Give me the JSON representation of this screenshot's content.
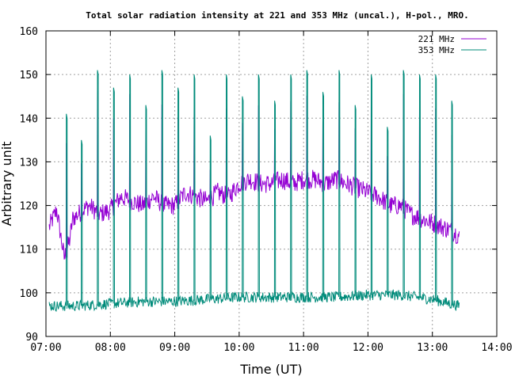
{
  "chart_data": {
    "type": "line",
    "title": "Total solar radiation intensity at 221 and 353 MHz (uncal.), H-pol., MRO.",
    "xlabel": "Time (UT)",
    "ylabel": "Arbitrary unit",
    "xlim": [
      "07:00",
      "14:00"
    ],
    "ylim": [
      90,
      160
    ],
    "x_ticks": [
      "07:00",
      "08:00",
      "09:00",
      "10:00",
      "11:00",
      "12:00",
      "13:00",
      "14:00"
    ],
    "y_ticks": [
      90,
      100,
      110,
      120,
      130,
      140,
      150,
      160
    ],
    "grid": true,
    "legend_position": "top-right",
    "series": [
      {
        "name": "221 MHz",
        "color": "#9400d3",
        "x": [
          "07:03",
          "07:10",
          "07:17",
          "07:22",
          "07:25",
          "07:30",
          "07:40",
          "07:50",
          "08:00",
          "08:10",
          "08:20",
          "08:30",
          "08:40",
          "08:50",
          "09:00",
          "09:10",
          "09:20",
          "09:30",
          "09:40",
          "09:50",
          "10:00",
          "10:10",
          "10:20",
          "10:30",
          "10:40",
          "10:50",
          "11:00",
          "11:10",
          "11:20",
          "11:30",
          "11:40",
          "11:50",
          "12:00",
          "12:10",
          "12:20",
          "12:30",
          "12:40",
          "12:50",
          "13:00",
          "13:10",
          "13:20",
          "13:25"
        ],
        "values": [
          115,
          119,
          108,
          112,
          117,
          118,
          120,
          118,
          119,
          122,
          121,
          120,
          122,
          120,
          120,
          123,
          122,
          121,
          123,
          122,
          125,
          126,
          125,
          125,
          126,
          125,
          126,
          126,
          125,
          126,
          125,
          124,
          123,
          122,
          120,
          120,
          118,
          117,
          116,
          115,
          114,
          113
        ]
      },
      {
        "name": "353 MHz",
        "color": "#008b7a",
        "baseline": {
          "x": [
            "07:03",
            "07:30",
            "08:00",
            "08:30",
            "09:00",
            "09:30",
            "10:00",
            "10:30",
            "11:00",
            "11:30",
            "12:00",
            "12:30",
            "13:00",
            "13:25"
          ],
          "values": [
            97,
            97,
            97.5,
            98,
            98,
            98.5,
            99,
            99,
            99,
            99,
            99.5,
            99.5,
            98.5,
            97
          ]
        },
        "spikes": {
          "x": [
            "07:19",
            "07:33",
            "07:48",
            "08:03",
            "08:18",
            "08:33",
            "08:48",
            "09:03",
            "09:18",
            "09:33",
            "09:48",
            "10:03",
            "10:18",
            "10:33",
            "10:48",
            "11:03",
            "11:18",
            "11:33",
            "11:48",
            "12:03",
            "12:18",
            "12:33",
            "12:48",
            "13:03",
            "13:18"
          ],
          "values": [
            141,
            135,
            151,
            147,
            150,
            143,
            151,
            147,
            150,
            136,
            150,
            145,
            150,
            144,
            150,
            151,
            146,
            151,
            143,
            150,
            138,
            151,
            150,
            150,
            144
          ]
        }
      }
    ]
  }
}
